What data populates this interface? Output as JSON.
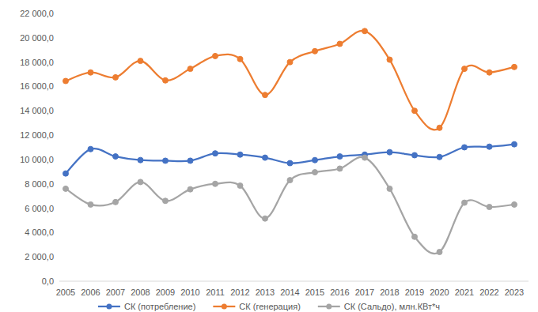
{
  "chart_data": {
    "type": "line",
    "categories": [
      "2005",
      "2006",
      "2007",
      "2008",
      "2009",
      "2010",
      "2011",
      "2012",
      "2013",
      "2014",
      "2015",
      "2016",
      "2017",
      "2018",
      "2019",
      "2020",
      "2021",
      "2022",
      "2023"
    ],
    "series": [
      {
        "name": "СК (потребление)",
        "color": "#4472c4",
        "marker": "circle",
        "line_style": "solid",
        "values": [
          8850,
          10850,
          10250,
          9950,
          9900,
          9900,
          10500,
          10400,
          10150,
          9700,
          9950,
          10250,
          10400,
          10600,
          10350,
          10200,
          11000,
          11050,
          11250
        ]
      },
      {
        "name": "СК (генерация)",
        "color": "#ed7d31",
        "marker": "circle",
        "line_style": "solid",
        "values": [
          16450,
          17150,
          16750,
          18100,
          16500,
          17450,
          18500,
          18250,
          15300,
          18000,
          18900,
          19500,
          20550,
          18200,
          14000,
          12600,
          17450,
          17150,
          17600
        ]
      },
      {
        "name": "СК (Сальдо), млн.КВт*ч",
        "color": "#a5a5a5",
        "marker": "circle",
        "line_style": "solid",
        "values": [
          7600,
          6300,
          6500,
          8150,
          6600,
          7550,
          8000,
          7850,
          5150,
          8300,
          8950,
          9250,
          10150,
          7600,
          3650,
          2400,
          6450,
          6100,
          6300
        ]
      }
    ],
    "ylim": [
      0,
      22000
    ],
    "yticks": [
      {
        "value": 0,
        "label": "0,0"
      },
      {
        "value": 2000,
        "label": "2 000,0"
      },
      {
        "value": 4000,
        "label": "4 000,0"
      },
      {
        "value": 6000,
        "label": "6 000,0"
      },
      {
        "value": 8000,
        "label": "8 000,0"
      },
      {
        "value": 10000,
        "label": "10 000,0"
      },
      {
        "value": 12000,
        "label": "12 000,0"
      },
      {
        "value": 14000,
        "label": "14 000,0"
      },
      {
        "value": 16000,
        "label": "16 000,0"
      },
      {
        "value": 18000,
        "label": "18 000,0"
      },
      {
        "value": 20000,
        "label": "20 000,0"
      },
      {
        "value": 22000,
        "label": "22 000,0"
      }
    ],
    "grid": false,
    "legend": "bottom"
  }
}
